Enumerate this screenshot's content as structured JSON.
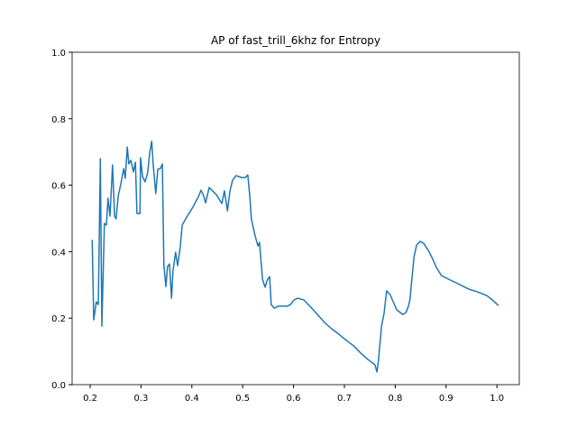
{
  "chart_data": {
    "type": "line",
    "title": "AP of fast_trill_6khz for Entropy",
    "x": [
      0.204,
      0.207,
      0.212,
      0.216,
      0.22,
      0.223,
      0.228,
      0.232,
      0.235,
      0.239,
      0.244,
      0.248,
      0.251,
      0.255,
      0.26,
      0.266,
      0.269,
      0.273,
      0.276,
      0.28,
      0.285,
      0.289,
      0.292,
      0.298,
      0.299,
      0.303,
      0.308,
      0.313,
      0.317,
      0.321,
      0.324,
      0.329,
      0.333,
      0.338,
      0.342,
      0.345,
      0.349,
      0.352,
      0.356,
      0.36,
      0.363,
      0.368,
      0.372,
      0.377,
      0.381,
      0.391,
      0.402,
      0.413,
      0.418,
      0.423,
      0.427,
      0.434,
      0.448,
      0.459,
      0.464,
      0.47,
      0.475,
      0.48,
      0.487,
      0.498,
      0.505,
      0.51,
      0.514,
      0.517,
      0.524,
      0.53,
      0.533,
      0.539,
      0.544,
      0.549,
      0.553,
      0.556,
      0.562,
      0.569,
      0.587,
      0.594,
      0.601,
      0.608,
      0.62,
      0.634,
      0.647,
      0.661,
      0.675,
      0.689,
      0.704,
      0.718,
      0.732,
      0.746,
      0.76,
      0.764,
      0.767,
      0.773,
      0.778,
      0.783,
      0.79,
      0.796,
      0.803,
      0.815,
      0.821,
      0.826,
      0.829,
      0.833,
      0.837,
      0.842,
      0.849,
      0.856,
      0.865,
      0.874,
      0.881,
      0.891,
      0.909,
      0.927,
      0.945,
      0.962,
      0.98,
      0.991,
      1.003
    ],
    "series": [
      {
        "name": "AP",
        "color": "#1f77b4",
        "values": [
          0.436,
          0.195,
          0.249,
          0.241,
          0.68,
          0.176,
          0.485,
          0.48,
          0.561,
          0.507,
          0.661,
          0.507,
          0.499,
          0.566,
          0.602,
          0.65,
          0.621,
          0.715,
          0.664,
          0.675,
          0.64,
          0.669,
          0.515,
          0.515,
          0.683,
          0.626,
          0.61,
          0.637,
          0.696,
          0.732,
          0.661,
          0.575,
          0.648,
          0.65,
          0.664,
          0.358,
          0.295,
          0.355,
          0.363,
          0.26,
          0.344,
          0.398,
          0.358,
          0.412,
          0.48,
          0.507,
          0.534,
          0.566,
          0.585,
          0.569,
          0.547,
          0.593,
          0.572,
          0.545,
          0.583,
          0.523,
          0.583,
          0.615,
          0.629,
          0.623,
          0.623,
          0.631,
          0.566,
          0.499,
          0.45,
          0.417,
          0.428,
          0.317,
          0.293,
          0.317,
          0.325,
          0.241,
          0.23,
          0.236,
          0.236,
          0.241,
          0.255,
          0.26,
          0.255,
          0.233,
          0.211,
          0.187,
          0.168,
          0.152,
          0.133,
          0.117,
          0.095,
          0.076,
          0.06,
          0.038,
          0.073,
          0.176,
          0.214,
          0.282,
          0.271,
          0.249,
          0.225,
          0.211,
          0.217,
          0.236,
          0.257,
          0.322,
          0.385,
          0.42,
          0.431,
          0.425,
          0.404,
          0.377,
          0.352,
          0.328,
          0.314,
          0.301,
          0.287,
          0.279,
          0.268,
          0.255,
          0.238
        ]
      }
    ],
    "xlim": [
      0.1645,
      1.044
    ],
    "ylim": [
      0,
      1.0
    ],
    "xticks": [
      0.2,
      0.3,
      0.4,
      0.5,
      0.6,
      0.7,
      0.8,
      0.9,
      {
        "value": 1.0,
        "label": "1.0"
      }
    ],
    "yticks": [
      {
        "value": 0,
        "label": "0.0"
      },
      0.2,
      0.4,
      0.6,
      0.8,
      {
        "value": 1.0,
        "label": "1.0"
      }
    ]
  }
}
